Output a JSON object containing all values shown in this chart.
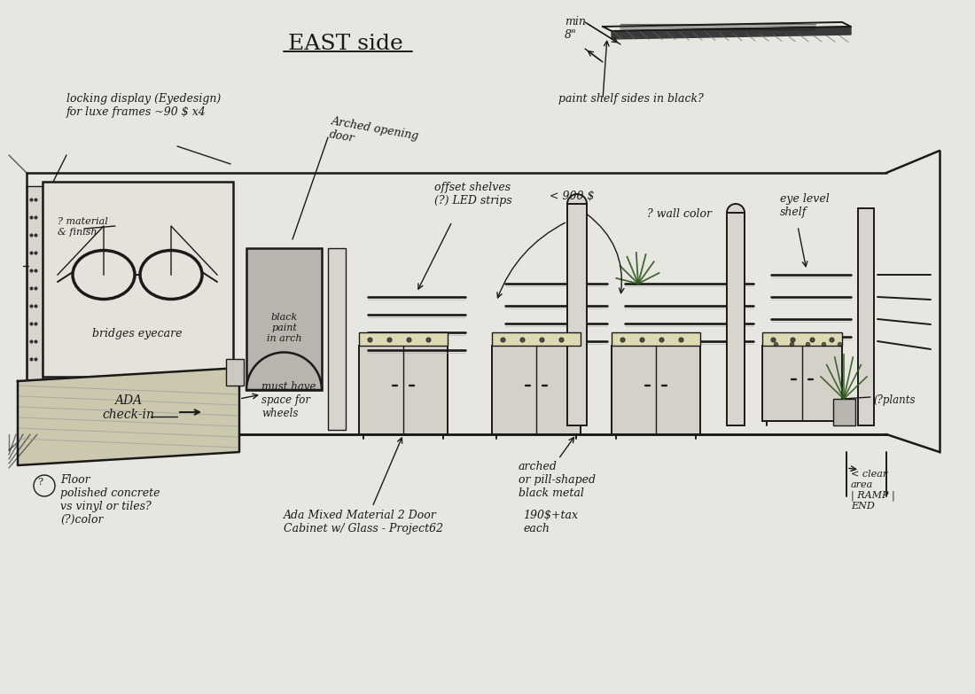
{
  "bg_color": "#dddbd5",
  "paper_color": "#e8e6e0",
  "sketch_color": "#1a1a1a",
  "dark_color": "#333333",
  "arch_fill": "#b8b4ae",
  "cabinet_fill": "#d5d0c8",
  "cabinet_top_fill": "#dddab3",
  "wood_fill": "#ccc8b0",
  "pillar_fill": "#d8d5ce",
  "annotations": {
    "title": "EAST side",
    "locking_display": "locking display (Eyedesign)\nfor luxe frames ~90 $ x4",
    "arched_door": "Arched opening\ndoor",
    "material": "? material\n& finish",
    "black_paint": "black\npaint\nin arch",
    "offset_shelves": "offset shelves\n(?) LED strips",
    "cost_900": "< 900 $",
    "wall_color": "? wall color",
    "eye_level": "eye level\nshelf",
    "plants": "(?plants",
    "floor": "(?) Floor\npolished concrete\nvs vinyl or tiles?\n(?)color",
    "ada": "ADA\ncheck-in",
    "space_wheels": "must have\nspace for\nwheels",
    "ada_cabinet": "Ada Mixed Material 2 Door\nCabinet w/ Glass - Project62",
    "price": "190$+tax\neach",
    "arched_metal": "arched\nor pill-shaped\nblack metal",
    "clear_ramp": "< clear\narea\n| RAMP |\nEND",
    "min_8": "min\n8\"",
    "paint_shelf": "paint shelf sides in black?"
  }
}
